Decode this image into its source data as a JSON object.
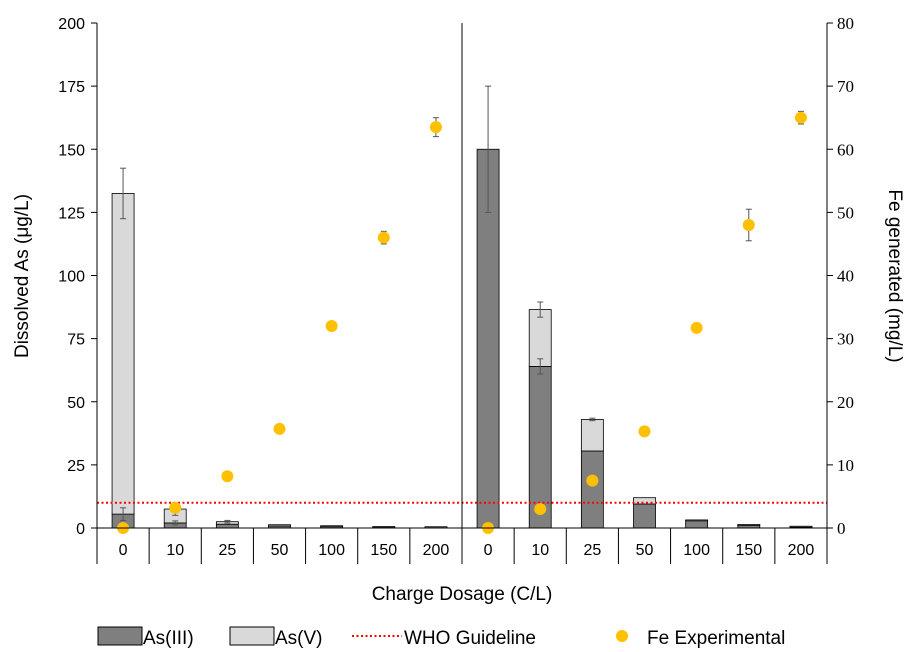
{
  "chart_data": {
    "type": "bar",
    "xlabel": "Charge Dosage (C/L)",
    "ylabel_left": "Dissolved As (μg/L)",
    "ylabel_right": "Fe generated (mg/L)",
    "ylim_left": [
      0,
      200
    ],
    "ylim_right": [
      0,
      80
    ],
    "yticks_left": [
      0,
      25,
      50,
      75,
      100,
      125,
      150,
      175,
      200
    ],
    "yticks_right": [
      0,
      10,
      20,
      30,
      40,
      50,
      60,
      70,
      80
    ],
    "categories": [
      "0",
      "10",
      "25",
      "50",
      "100",
      "150",
      "200",
      "0",
      "10",
      "25",
      "50",
      "100",
      "150",
      "200"
    ],
    "series": [
      {
        "name": "As(III)",
        "kind": "stacked-bar",
        "color": "#7f7f7f",
        "axis": "left",
        "values": [
          5.5,
          2.0,
          1.5,
          0.8,
          0.6,
          0.4,
          0.4,
          150,
          64,
          30.5,
          9.5,
          3.0,
          1.2,
          0.6
        ],
        "errors": [
          2.5,
          0.8,
          0,
          0,
          0,
          0,
          0,
          25,
          3,
          0,
          0,
          0,
          0,
          0
        ]
      },
      {
        "name": "As(V)",
        "kind": "stacked-bar",
        "color": "#d9d9d9",
        "axis": "left",
        "values": [
          127,
          5.5,
          1.0,
          0.5,
          0.3,
          0.2,
          0.1,
          0,
          22.5,
          12.5,
          2.5,
          0.2,
          0.2,
          0.1
        ],
        "errors": [
          10,
          2.5,
          0.5,
          0,
          0,
          0,
          0,
          0,
          3,
          0.5,
          0,
          0,
          0,
          0
        ]
      },
      {
        "name": "WHO Guideline",
        "kind": "line",
        "color": "#ff0000",
        "axis": "left",
        "value": 10
      },
      {
        "name": "Fe Experimental",
        "kind": "scatter",
        "color": "#ffc000",
        "axis": "right",
        "values": [
          0,
          3.2,
          8.2,
          15.7,
          32,
          46,
          63.5,
          0,
          3.0,
          7.5,
          15.3,
          31.7,
          48,
          65
        ],
        "errors": [
          0,
          0,
          0,
          0,
          0,
          1,
          1.5,
          0,
          0,
          0,
          0,
          0,
          2.5,
          1
        ]
      }
    ],
    "legend_position": "bottom",
    "grid": false
  }
}
